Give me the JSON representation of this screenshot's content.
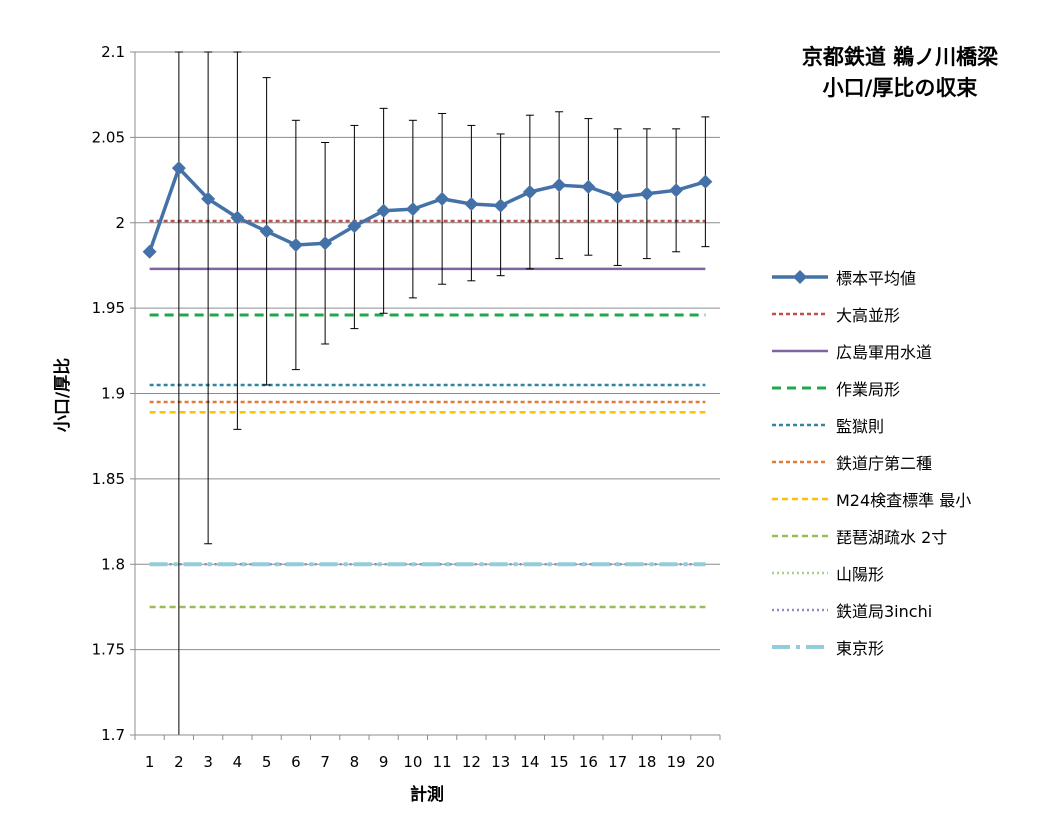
{
  "title_lines": [
    "京都鉄道 鵜ノ川橋梁",
    "小口/厚比の収束"
  ],
  "chart_data": {
    "type": "line",
    "xlabel": "計測",
    "ylabel": "小口/厚比",
    "ylim": [
      1.7,
      2.1
    ],
    "yticks": [
      "1.7",
      "1.75",
      "1.8",
      "1.85",
      "1.9",
      "1.95",
      "2",
      "2.05",
      "2.1"
    ],
    "x": [
      1,
      2,
      3,
      4,
      5,
      6,
      7,
      8,
      9,
      10,
      11,
      12,
      13,
      14,
      15,
      16,
      17,
      18,
      19,
      20
    ],
    "xticks": [
      "1",
      "2",
      "3",
      "4",
      "5",
      "6",
      "7",
      "8",
      "9",
      "10",
      "11",
      "12",
      "13",
      "14",
      "15",
      "16",
      "17",
      "18",
      "19",
      "20"
    ],
    "grid": "horizontal",
    "legend_position": "right",
    "series": [
      {
        "name": "標本平均値",
        "kind": "marker-line",
        "color": "#4472a8",
        "values": [
          1.983,
          2.032,
          2.014,
          2.003,
          1.995,
          1.987,
          1.988,
          1.998,
          2.007,
          2.008,
          2.014,
          2.011,
          2.01,
          2.018,
          2.022,
          2.021,
          2.015,
          2.017,
          2.019,
          2.024
        ],
        "error_low": [
          null,
          1.7,
          1.812,
          1.879,
          1.905,
          1.914,
          1.929,
          1.938,
          1.947,
          1.956,
          1.964,
          1.966,
          1.969,
          1.973,
          1.979,
          1.981,
          1.975,
          1.979,
          1.983,
          1.986
        ],
        "error_high": [
          null,
          2.1,
          2.1,
          2.1,
          2.085,
          2.06,
          2.047,
          2.057,
          2.067,
          2.06,
          2.064,
          2.057,
          2.052,
          2.063,
          2.065,
          2.061,
          2.055,
          2.055,
          2.055,
          2.062
        ]
      },
      {
        "name": "大高並形",
        "kind": "constant",
        "value": 2.001,
        "color": "#c0504d",
        "dash": "4,3",
        "width": 2.5
      },
      {
        "name": "広島軍用水道",
        "kind": "constant",
        "value": 1.973,
        "color": "#8064a2",
        "dash": "",
        "width": 2.5
      },
      {
        "name": "作業局形",
        "kind": "constant",
        "value": 1.946,
        "color": "#1fa84a",
        "dash": "9,6",
        "width": 3
      },
      {
        "name": "監獄則",
        "kind": "constant",
        "value": 1.905,
        "color": "#31859c",
        "dash": "4,3",
        "width": 2.5
      },
      {
        "name": "鉄道庁第二種",
        "kind": "constant",
        "value": 1.895,
        "color": "#e07b39",
        "dash": "4,3",
        "width": 2.5
      },
      {
        "name": "M24検査標準 最小",
        "kind": "constant",
        "value": 1.889,
        "color": "#ffc000",
        "dash": "6,4",
        "width": 2.5
      },
      {
        "name": "琵琶湖疏水 2寸",
        "kind": "constant",
        "value": 1.775,
        "color": "#9bbb59",
        "dash": "6,4",
        "width": 2.5
      },
      {
        "name": "山陽形",
        "kind": "constant",
        "value": 1.8,
        "color": "#a9d18e",
        "dash": "2,3",
        "width": 2.5
      },
      {
        "name": "鉄道局3inchi",
        "kind": "constant",
        "value": 1.8,
        "color": "#8a8fc0",
        "dash": "2,3",
        "width": 2.5
      },
      {
        "name": "東京形",
        "kind": "constant",
        "value": 1.8,
        "color": "#92cddc",
        "dash": "18,6,4,6",
        "width": 4
      }
    ]
  }
}
